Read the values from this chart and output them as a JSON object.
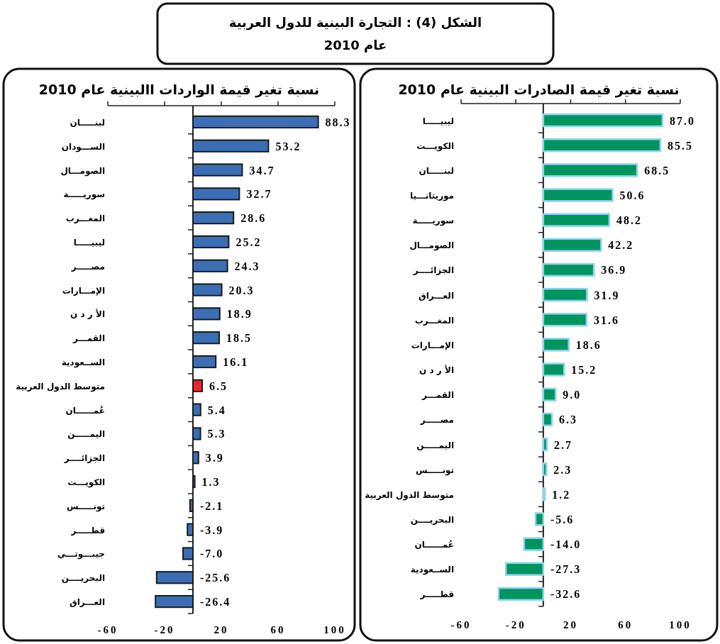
{
  "chart_data": [
    {
      "type": "bar",
      "orientation": "horizontal",
      "title": "نسبة تغير قيمة الصادرات البينية عام 2010",
      "annotations": [
        "الشكل (4) : التجارة البينية  للدول العربية\nعام 2010"
      ],
      "categories": [
        "ليبيـــــا",
        "الكويـــت",
        "لبنـــــان",
        "موريتانـــيا",
        "سوريـــــة",
        "الصومـــال",
        "الجزائــــر",
        "العـــراق",
        "المغـــرب",
        "الإمـــارات",
        "الأ ر د ن",
        "القمـــر",
        "مصـــــر",
        "اليمـــــن",
        "تونـــــس",
        "متوسط الدول العربية",
        "البحريــــن",
        "عُمــــــان",
        "الســعودية",
        "قطـــــر"
      ],
      "values": [
        87.0,
        85.5,
        68.5,
        50.6,
        48.2,
        42.2,
        36.9,
        31.9,
        31.6,
        18.6,
        15.2,
        9.0,
        6.3,
        2.7,
        2.3,
        1.2,
        -5.6,
        -14.0,
        -27.3,
        -32.6
      ],
      "value_labels": [
        "87.0",
        "85.5",
        "68.5",
        "50.6",
        "48.2",
        "42.2",
        "36.9",
        "31.9",
        "31.6",
        "18.6",
        "15.2",
        "9.0",
        "6.3",
        "2.7",
        "2.3",
        "1.2",
        "-5.6",
        "-14.0",
        "-27.3",
        "-32.6"
      ],
      "colors": [
        "#00955f",
        "#00955f",
        "#00955f",
        "#00955f",
        "#00955f",
        "#00955f",
        "#00955f",
        "#00955f",
        "#00955f",
        "#00955f",
        "#00955f",
        "#00955f",
        "#00955f",
        "#00955f",
        "#00955f",
        "#00955f",
        "#00955f",
        "#00955f",
        "#00955f",
        "#00955f"
      ],
      "xlim": [
        -60,
        100
      ],
      "xticks": [
        -60,
        -20,
        20,
        60,
        100
      ]
    },
    {
      "type": "bar",
      "orientation": "horizontal",
      "title": "نسبة تغير قيمة الواردات االبينية عام 2010",
      "categories": [
        "لبنـــــان",
        "الســـودان",
        "الصومـــال",
        "سوريـــــة",
        "المغـــرب",
        "ليبيـــــا",
        "مصـــــر",
        "الإمـــارات",
        "الأ ر د ن",
        "القمـــر",
        "الســعودية",
        "متوسط الدول العربية",
        "عُمــــــان",
        "اليمـــــن",
        "الجزائــــر",
        "الكويـــت",
        "تونـــــس",
        "قطـــــر",
        "جيبـــوتـــي",
        "البحريــــن",
        "العـــراق"
      ],
      "values": [
        88.3,
        53.2,
        34.7,
        32.7,
        28.6,
        25.2,
        24.3,
        20.3,
        18.9,
        18.5,
        16.1,
        6.5,
        5.4,
        5.3,
        3.9,
        1.3,
        -2.1,
        -3.9,
        -7.0,
        -25.6,
        -26.4
      ],
      "value_labels": [
        "88.3",
        "53.2",
        "34.7",
        "32.7",
        "28.6",
        "25.2",
        "24.3",
        "20.3",
        "18.9",
        "18.5",
        "16.1",
        "6.5",
        "5.4",
        "5.3",
        "3.9",
        "1.3",
        "-2.1",
        "-3.9",
        "-7.0",
        "-25.6",
        "-26.4"
      ],
      "colors": [
        "#3a6fb6",
        "#3a6fb6",
        "#3a6fb6",
        "#3a6fb6",
        "#3a6fb6",
        "#3a6fb6",
        "#3a6fb6",
        "#3a6fb6",
        "#3a6fb6",
        "#3a6fb6",
        "#3a6fb6",
        "#e8262a",
        "#3a6fb6",
        "#3a6fb6",
        "#3a6fb6",
        "#3a6fb6",
        "#3a6fb6",
        "#3a6fb6",
        "#3a6fb6",
        "#3a6fb6",
        "#3a6fb6"
      ],
      "xlim": [
        -60,
        100
      ],
      "xticks": [
        -60,
        -20,
        20,
        60,
        100
      ]
    }
  ]
}
